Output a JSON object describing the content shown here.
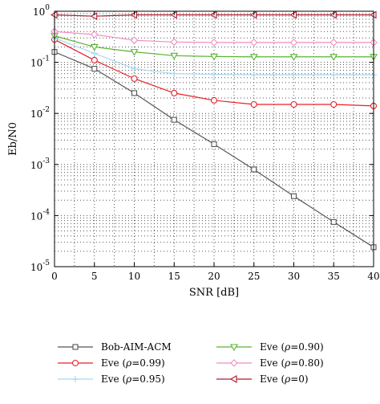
{
  "chart_data": {
    "type": "line",
    "xlabel": "SNR [dB]",
    "ylabel": "Eb/N0",
    "xlim": [
      0,
      40
    ],
    "ylim": [
      1e-05,
      1
    ],
    "yscale": "log",
    "grid": true,
    "x": [
      0,
      5,
      10,
      15,
      20,
      25,
      30,
      35,
      40
    ],
    "xticks": [
      {
        "value": 0,
        "label": "0"
      },
      {
        "value": 5,
        "label": "5"
      },
      {
        "value": 10,
        "label": "10"
      },
      {
        "value": 15,
        "label": "15"
      },
      {
        "value": 20,
        "label": "20"
      },
      {
        "value": 25,
        "label": "25"
      },
      {
        "value": 30,
        "label": "30"
      },
      {
        "value": 35,
        "label": "35"
      },
      {
        "value": 40,
        "label": "40"
      }
    ],
    "yticks": [
      {
        "value": 1e-05,
        "base": "10",
        "exp": "-5"
      },
      {
        "value": 0.0001,
        "base": "10",
        "exp": "-4"
      },
      {
        "value": 0.001,
        "base": "10",
        "exp": "-3"
      },
      {
        "value": 0.01,
        "base": "10",
        "exp": "-2"
      },
      {
        "value": 0.1,
        "base": "10",
        "exp": "-1"
      },
      {
        "value": 1,
        "base": "10",
        "exp": "0"
      }
    ],
    "legend_position": "bottom",
    "series": [
      {
        "name": "Bob-AIM-ACM",
        "marker": "square",
        "color": "#555555",
        "values": [
          0.16,
          0.075,
          0.025,
          0.0075,
          0.0025,
          0.0008,
          0.00024,
          7.5e-05,
          2.4e-05
        ]
      },
      {
        "name_prefix": "Eve (",
        "name_var": "ρ",
        "name_suffix": "=0.99)",
        "marker": "circle",
        "color": "#e8202a",
        "values": [
          0.28,
          0.11,
          0.048,
          0.025,
          0.018,
          0.015,
          0.015,
          0.015,
          0.014
        ]
      },
      {
        "name_prefix": "Eve (",
        "name_var": "ρ",
        "name_suffix": "=0.95)",
        "marker": "plus",
        "color": "#a9d8f0",
        "values": [
          0.3,
          0.15,
          0.075,
          0.06,
          0.058,
          0.057,
          0.057,
          0.057,
          0.057
        ]
      },
      {
        "name_prefix": "Eve (",
        "name_var": "ρ",
        "name_suffix": "=0.90)",
        "marker": "triangle-down",
        "color": "#5ab432",
        "values": [
          0.33,
          0.2,
          0.16,
          0.135,
          0.13,
          0.128,
          0.128,
          0.128,
          0.128
        ]
      },
      {
        "name_prefix": "Eve (",
        "name_var": "ρ",
        "name_suffix": "=0.80)",
        "marker": "diamond",
        "color": "#f08cc0",
        "values": [
          0.4,
          0.35,
          0.27,
          0.25,
          0.245,
          0.245,
          0.245,
          0.245,
          0.245
        ]
      },
      {
        "name_prefix": "Eve (",
        "name_var": "ρ",
        "name_suffix": "=0)",
        "marker": "triangle-left",
        "color": "#b01c2e",
        "values": [
          0.85,
          0.8,
          0.85,
          0.85,
          0.85,
          0.85,
          0.85,
          0.85,
          0.85
        ]
      }
    ]
  }
}
